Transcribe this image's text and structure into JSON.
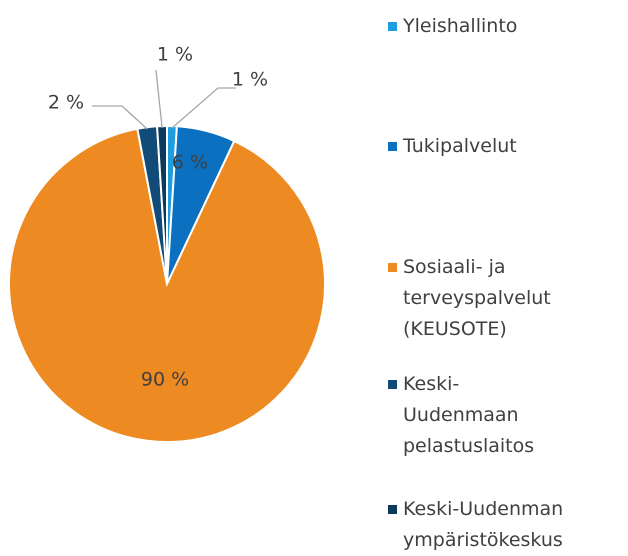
{
  "chart_data": {
    "type": "pie",
    "categories": [
      "Yleishallinto",
      "Tukipalvelut",
      "Sosiaali- ja terveyspalvelut (KEUSOTE)",
      "Keski-Uudenmaan pelastuslaitos",
      "Keski-Uudenman ympäristökeskus"
    ],
    "values": [
      1,
      6,
      90,
      2,
      1
    ],
    "value_labels": [
      "1 %",
      "6 %",
      "90 %",
      "2 %",
      "1 %"
    ],
    "colors": [
      "#1e9ee0",
      "#0a70bf",
      "#ee8a22",
      "#114c78",
      "#0b3a5c"
    ],
    "legend": "right"
  }
}
